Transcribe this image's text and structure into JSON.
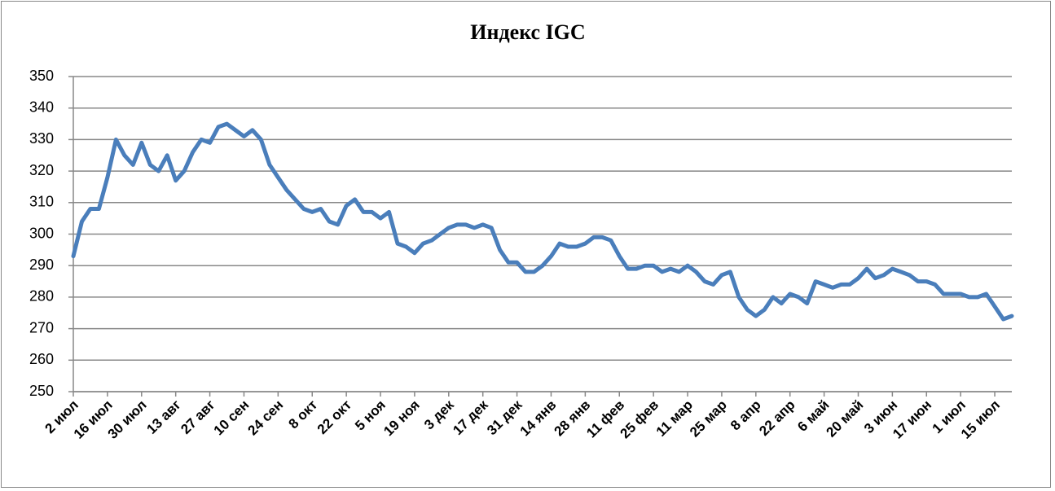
{
  "chart_data": {
    "type": "line",
    "title": "Индекс IGC",
    "categories": [
      "2 июл",
      null,
      null,
      null,
      "16 июл",
      null,
      null,
      null,
      "30 июл",
      null,
      null,
      null,
      "13 авг",
      null,
      null,
      null,
      "27 авг",
      null,
      null,
      null,
      "10 сен",
      null,
      null,
      null,
      "24 сен",
      null,
      null,
      null,
      "8 окт",
      null,
      null,
      null,
      "22 окт",
      null,
      null,
      null,
      "5 ноя",
      null,
      null,
      null,
      "19 ноя",
      null,
      null,
      null,
      "3 дек",
      null,
      null,
      null,
      "17 дек",
      null,
      null,
      null,
      "31 дек",
      null,
      null,
      null,
      "14 янв",
      null,
      null,
      null,
      "28 янв",
      null,
      null,
      null,
      "11 фев",
      null,
      null,
      null,
      "25 фев",
      null,
      null,
      null,
      "11 мар",
      null,
      null,
      null,
      "25 мар",
      null,
      null,
      null,
      "8 апр",
      null,
      null,
      null,
      "22 апр",
      null,
      null,
      null,
      "6 май",
      null,
      null,
      null,
      "20 май",
      null,
      null,
      null,
      "3 июн",
      null,
      null,
      null,
      "17 июн",
      null,
      null,
      null,
      "1 июл",
      null,
      null,
      null,
      "15 июл",
      null,
      null
    ],
    "values": [
      293,
      304,
      308,
      308,
      318,
      330,
      325,
      322,
      329,
      322,
      320,
      325,
      317,
      320,
      326,
      330,
      329,
      334,
      335,
      333,
      331,
      333,
      330,
      322,
      318,
      314,
      311,
      308,
      307,
      308,
      304,
      303,
      309,
      311,
      307,
      307,
      305,
      307,
      297,
      296,
      294,
      297,
      298,
      300,
      302,
      303,
      303,
      302,
      303,
      302,
      295,
      291,
      291,
      288,
      288,
      290,
      293,
      297,
      296,
      296,
      297,
      299,
      299,
      298,
      293,
      289,
      289,
      290,
      290,
      288,
      289,
      288,
      290,
      288,
      285,
      284,
      287,
      288,
      280,
      276,
      274,
      276,
      280,
      278,
      281,
      280,
      278,
      285,
      284,
      283,
      284,
      284,
      286,
      289,
      286,
      287,
      289,
      288,
      287,
      285,
      285,
      284,
      281,
      281,
      281,
      280,
      280,
      281,
      277,
      273,
      274
    ],
    "color": "#4a7ebb",
    "ylim": [
      250,
      350
    ],
    "yticks": [
      250,
      260,
      270,
      280,
      290,
      300,
      310,
      320,
      330,
      340,
      350
    ],
    "grid": true
  }
}
